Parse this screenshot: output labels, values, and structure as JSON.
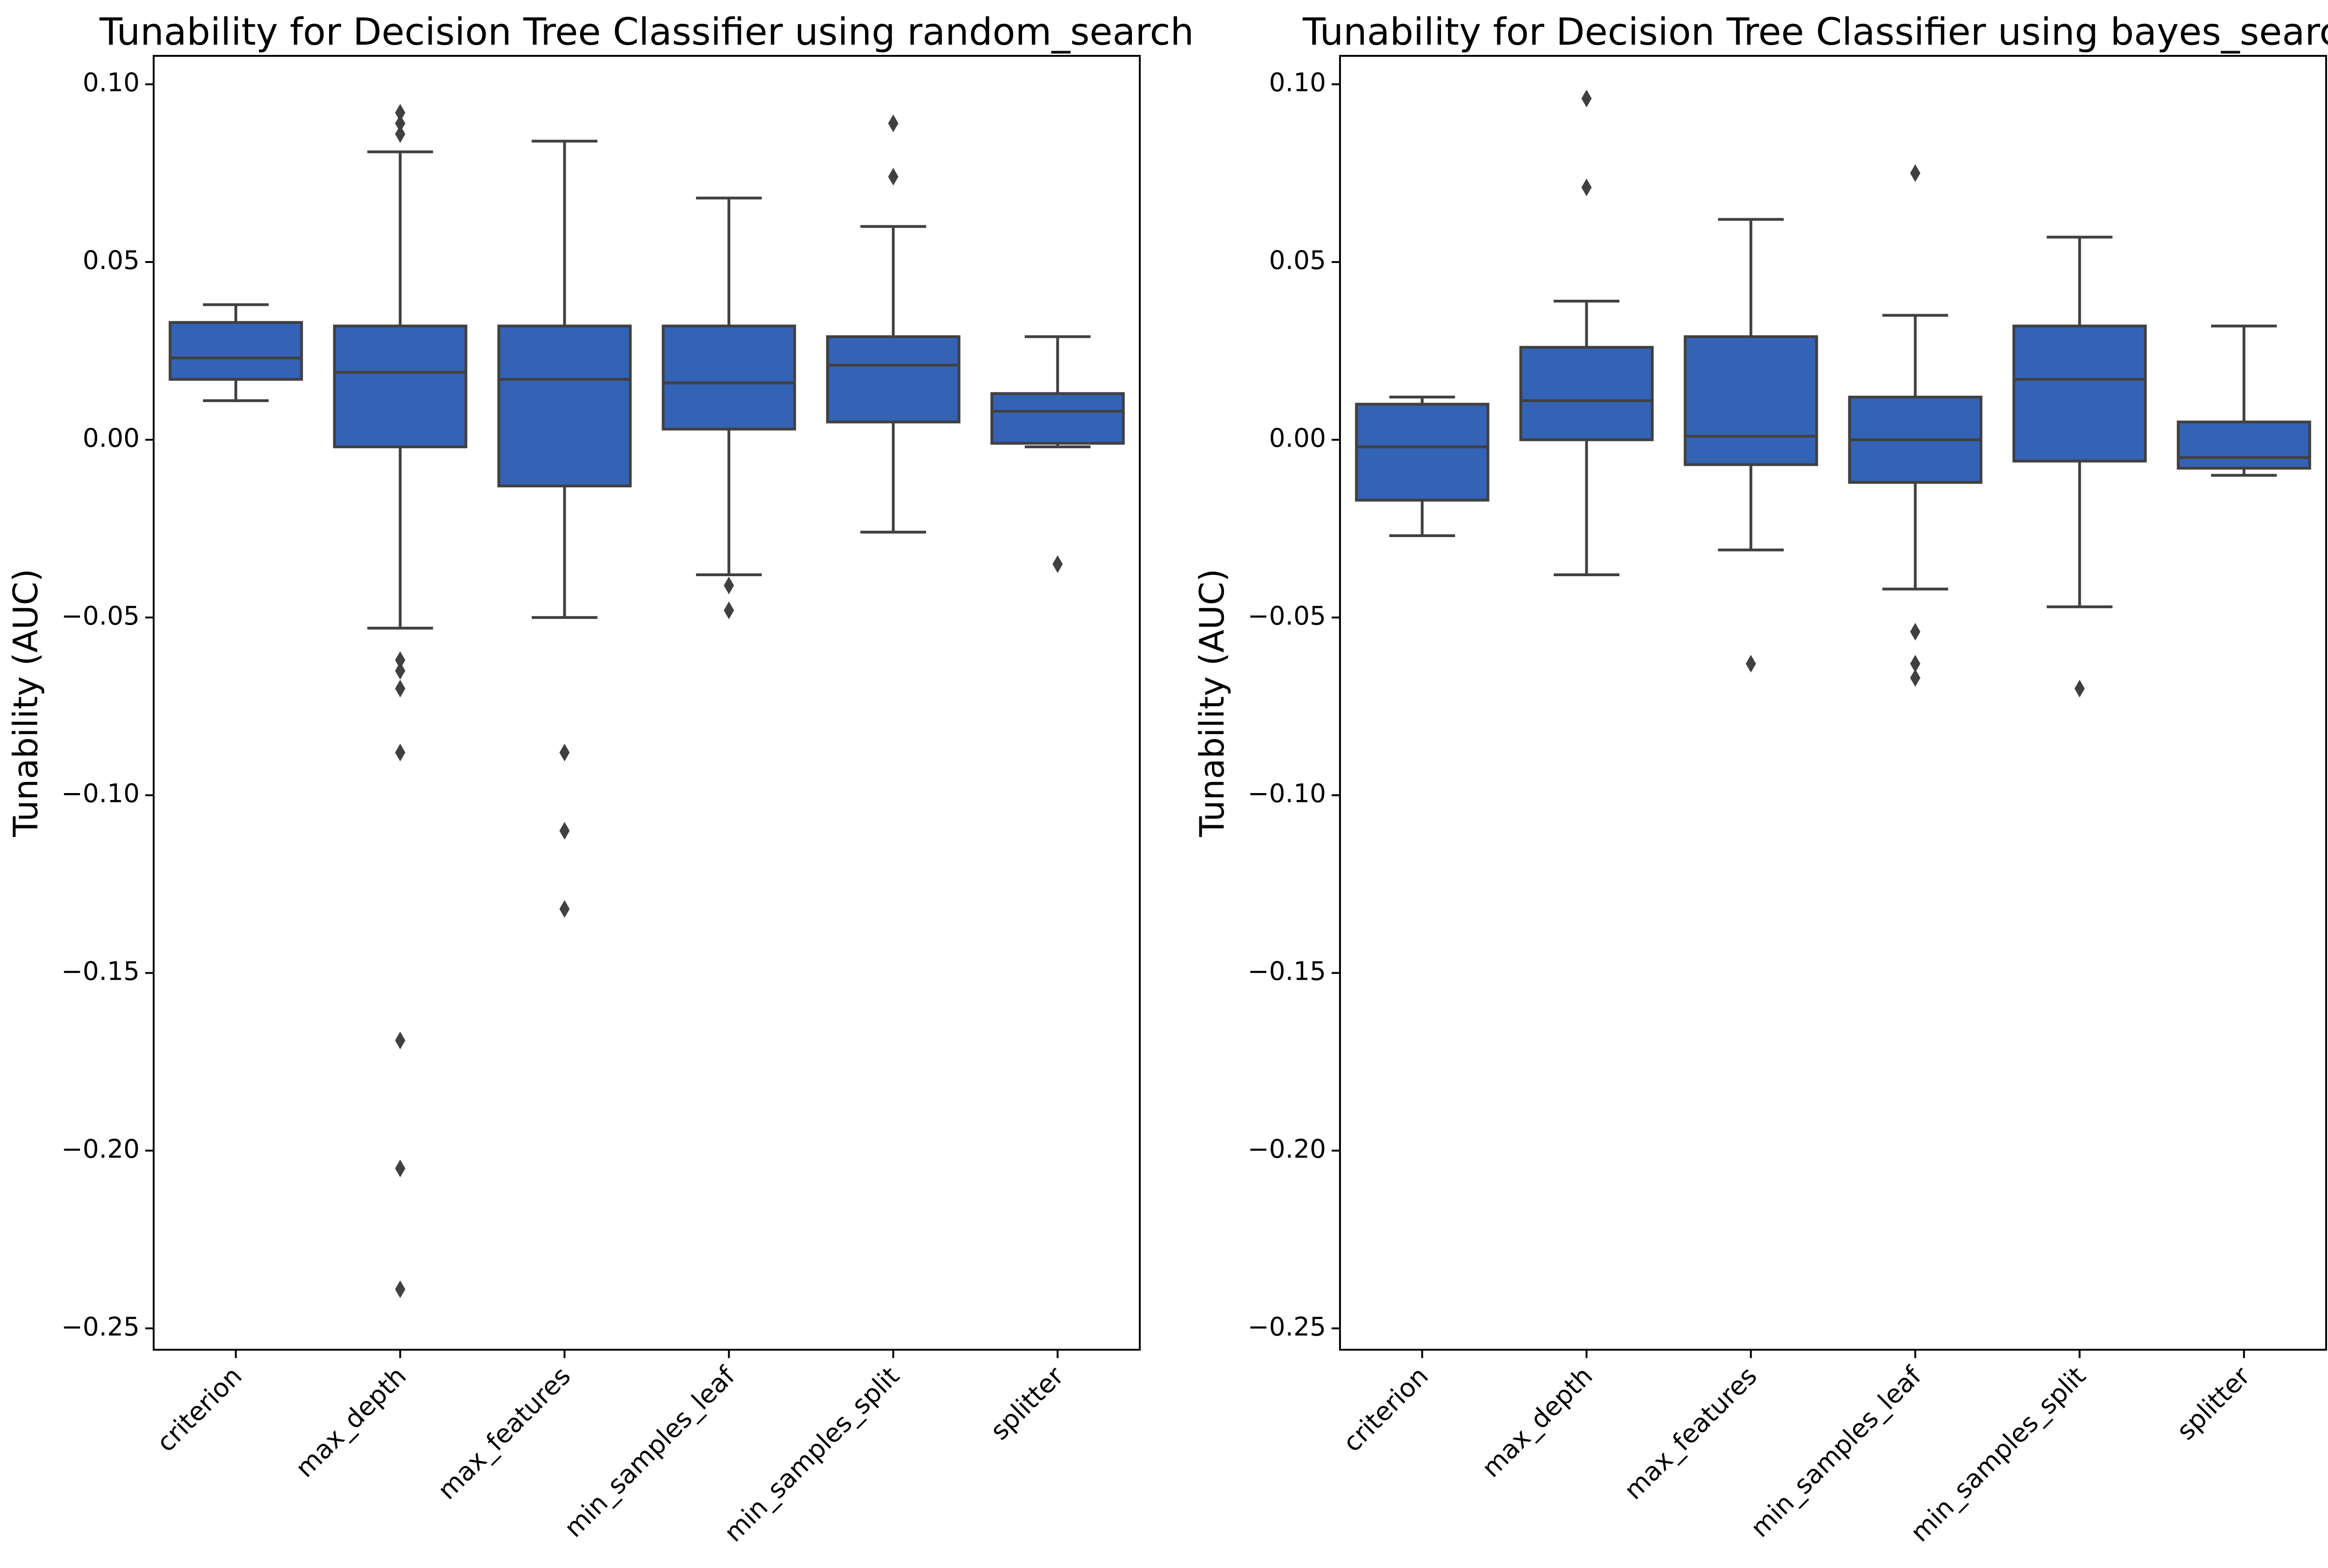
{
  "style": {
    "box_color": "#3462b5",
    "line_color": "#404040",
    "background": "#ffffff"
  },
  "chart_data": [
    {
      "type": "box",
      "title": "Tunability for Decision Tree Classifier using random_search",
      "ylabel": "Tunability (AUC)",
      "ylim": [
        -0.256,
        0.108
      ],
      "yticks": [
        0.1,
        0.05,
        0.0,
        -0.05,
        -0.1,
        -0.15,
        -0.2,
        -0.25
      ],
      "ytick_labels": [
        "0.10",
        "0.05",
        "0.00",
        "−0.05",
        "−0.10",
        "−0.15",
        "−0.20",
        "−0.25"
      ],
      "categories": [
        "criterion",
        "max_depth",
        "max_features",
        "min_samples_leaf",
        "min_samples_split",
        "splitter"
      ],
      "boxes": [
        {
          "whisker_low": 0.011,
          "q1": 0.017,
          "median": 0.023,
          "q3": 0.033,
          "whisker_high": 0.038,
          "outliers": []
        },
        {
          "whisker_low": -0.053,
          "q1": -0.002,
          "median": 0.019,
          "q3": 0.032,
          "whisker_high": 0.081,
          "outliers": [
            0.092,
            0.089,
            0.086,
            -0.062,
            -0.065,
            -0.07,
            -0.088,
            -0.169,
            -0.205,
            -0.239
          ]
        },
        {
          "whisker_low": -0.05,
          "q1": -0.013,
          "median": 0.017,
          "q3": 0.032,
          "whisker_high": 0.084,
          "outliers": [
            -0.088,
            -0.11,
            -0.132
          ]
        },
        {
          "whisker_low": -0.038,
          "q1": 0.003,
          "median": 0.016,
          "q3": 0.032,
          "whisker_high": 0.068,
          "outliers": [
            -0.041,
            -0.048
          ]
        },
        {
          "whisker_low": -0.026,
          "q1": 0.005,
          "median": 0.021,
          "q3": 0.029,
          "whisker_high": 0.06,
          "outliers": [
            0.089,
            0.074
          ]
        },
        {
          "whisker_low": -0.002,
          "q1": -0.001,
          "median": 0.008,
          "q3": 0.013,
          "whisker_high": 0.029,
          "outliers": [
            -0.035
          ]
        }
      ]
    },
    {
      "type": "box",
      "title": "Tunability for Decision Tree Classifier using bayes_search",
      "ylabel": "Tunability (AUC)",
      "ylim": [
        -0.256,
        0.108
      ],
      "yticks": [
        0.1,
        0.05,
        0.0,
        -0.05,
        -0.1,
        -0.15,
        -0.2,
        -0.25
      ],
      "ytick_labels": [
        "0.10",
        "0.05",
        "0.00",
        "−0.05",
        "−0.10",
        "−0.15",
        "−0.20",
        "−0.25"
      ],
      "categories": [
        "criterion",
        "max_depth",
        "max_features",
        "min_samples_leaf",
        "min_samples_split",
        "splitter"
      ],
      "boxes": [
        {
          "whisker_low": -0.027,
          "q1": -0.017,
          "median": -0.002,
          "q3": 0.01,
          "whisker_high": 0.012,
          "outliers": []
        },
        {
          "whisker_low": -0.038,
          "q1": 0.0,
          "median": 0.011,
          "q3": 0.026,
          "whisker_high": 0.039,
          "outliers": [
            0.096,
            0.071
          ]
        },
        {
          "whisker_low": -0.031,
          "q1": -0.007,
          "median": 0.001,
          "q3": 0.029,
          "whisker_high": 0.062,
          "outliers": [
            -0.063
          ]
        },
        {
          "whisker_low": -0.042,
          "q1": -0.012,
          "median": 0.0,
          "q3": 0.012,
          "whisker_high": 0.035,
          "outliers": [
            0.075,
            -0.054,
            -0.063,
            -0.067
          ]
        },
        {
          "whisker_low": -0.047,
          "q1": -0.006,
          "median": 0.017,
          "q3": 0.032,
          "whisker_high": 0.057,
          "outliers": [
            -0.07
          ]
        },
        {
          "whisker_low": -0.01,
          "q1": -0.008,
          "median": -0.005,
          "q3": 0.005,
          "whisker_high": 0.032,
          "outliers": []
        }
      ]
    }
  ]
}
